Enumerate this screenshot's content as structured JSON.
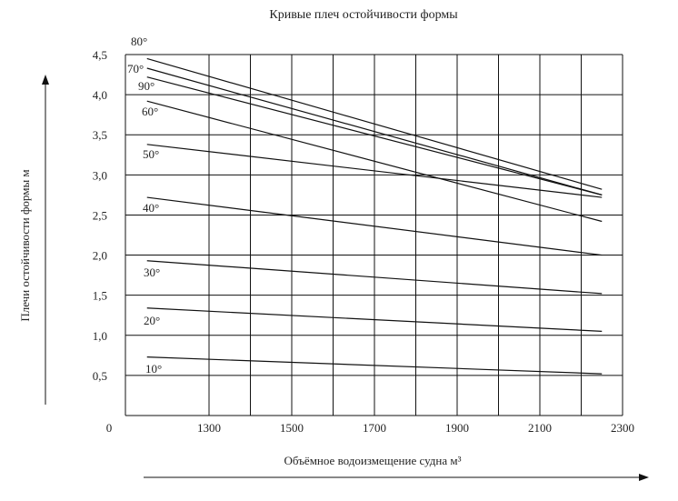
{
  "chart_data": {
    "type": "line",
    "title": "Кривые плеч остойчивости формы",
    "xlabel": "Объёмное водоизмещение судна м³",
    "ylabel": "Плечи остойчивости формы м",
    "x_ticks": [
      "0",
      "1300",
      "1500",
      "1700",
      "1900",
      "2100",
      "2300"
    ],
    "y_ticks": [
      "0,5",
      "1,0",
      "1,5",
      "2,0",
      "2,5",
      "3,0",
      "3,5",
      "4,0",
      "4,5"
    ],
    "xlim": [
      1100,
      2300
    ],
    "ylim": [
      0,
      4.5
    ],
    "grid": true,
    "series": [
      {
        "name": "80°",
        "x": [
          1150,
          2250
        ],
        "y": [
          4.45,
          2.82
        ]
      },
      {
        "name": "70°",
        "x": [
          1150,
          2250
        ],
        "y": [
          4.33,
          2.75
        ]
      },
      {
        "name": "90°",
        "x": [
          1150,
          2250
        ],
        "y": [
          4.22,
          2.75
        ]
      },
      {
        "name": "60°",
        "x": [
          1150,
          2250
        ],
        "y": [
          3.92,
          2.42
        ]
      },
      {
        "name": "50°",
        "x": [
          1150,
          2250
        ],
        "y": [
          3.38,
          2.72
        ]
      },
      {
        "name": "40°",
        "x": [
          1150,
          2250
        ],
        "y": [
          2.72,
          2.0
        ]
      },
      {
        "name": "30°",
        "x": [
          1150,
          2250
        ],
        "y": [
          1.93,
          1.52
        ]
      },
      {
        "name": "20°",
        "x": [
          1150,
          2250
        ],
        "y": [
          1.34,
          1.05
        ]
      },
      {
        "name": "10°",
        "x": [
          1150,
          2250
        ],
        "y": [
          0.73,
          0.52
        ]
      }
    ]
  }
}
